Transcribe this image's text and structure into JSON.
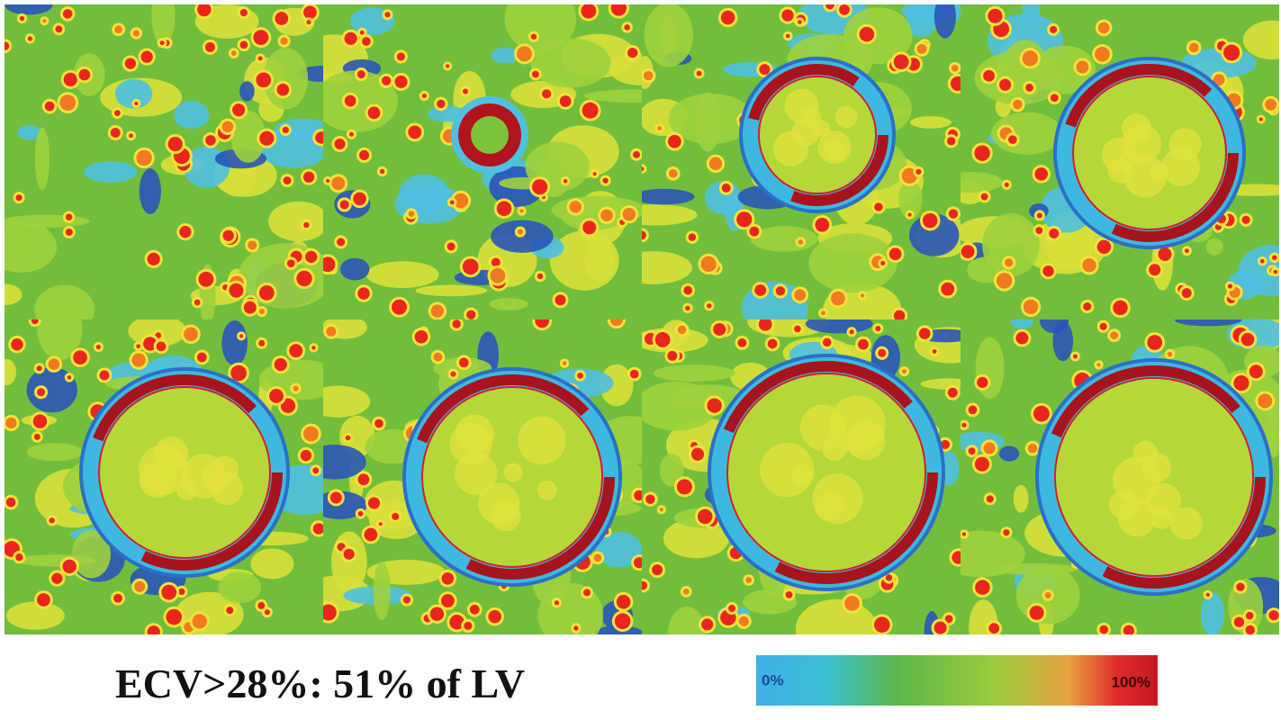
{
  "caption": "ECV>28%: 51% of LV",
  "colorbar": {
    "min_label": "0%",
    "max_label": "100%"
  }
}
